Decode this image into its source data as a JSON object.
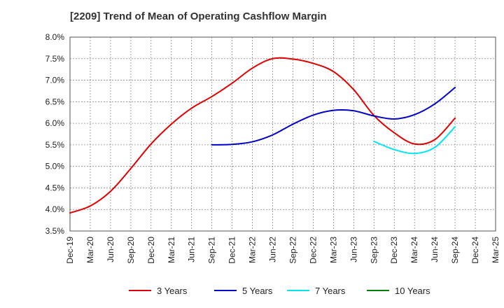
{
  "chart_data": {
    "type": "line",
    "title": "[2209]  Trend of Mean of Operating Cashflow Margin",
    "xlabel": "",
    "ylabel": "",
    "x": [
      "Dec-19",
      "Mar-20",
      "Jun-20",
      "Sep-20",
      "Dec-20",
      "Mar-21",
      "Jun-21",
      "Sep-21",
      "Dec-21",
      "Mar-22",
      "Jun-22",
      "Sep-22",
      "Dec-22",
      "Mar-23",
      "Jun-23",
      "Sep-23",
      "Dec-23",
      "Mar-24",
      "Jun-24",
      "Sep-24",
      "Dec-24",
      "Mar-25"
    ],
    "y_ticks": [
      "3.5%",
      "4.0%",
      "4.5%",
      "5.0%",
      "5.5%",
      "6.0%",
      "6.5%",
      "7.0%",
      "7.5%",
      "8.0%"
    ],
    "ylim": [
      3.5,
      8.0
    ],
    "grid": true,
    "legend_position": "bottom",
    "series": [
      {
        "name": "3 Years",
        "color": "#e00000",
        "values": [
          3.92,
          4.08,
          4.42,
          4.95,
          5.52,
          5.98,
          6.35,
          6.62,
          6.93,
          7.28,
          7.5,
          7.49,
          7.39,
          7.2,
          6.78,
          6.18,
          5.78,
          5.52,
          5.62,
          6.12,
          null,
          null
        ]
      },
      {
        "name": "5 Years",
        "color": "#0000c8",
        "values": [
          null,
          null,
          null,
          null,
          null,
          null,
          null,
          5.5,
          5.51,
          5.57,
          5.73,
          5.98,
          6.19,
          6.3,
          6.29,
          6.17,
          6.1,
          6.2,
          6.45,
          6.83,
          null,
          null
        ]
      },
      {
        "name": "7 Years",
        "color": "#00e5ee",
        "values": [
          null,
          null,
          null,
          null,
          null,
          null,
          null,
          null,
          null,
          null,
          null,
          null,
          null,
          null,
          null,
          5.58,
          5.39,
          5.3,
          5.44,
          5.92,
          null,
          null
        ]
      },
      {
        "name": "10 Years",
        "color": "#008000",
        "values": [
          null,
          null,
          null,
          null,
          null,
          null,
          null,
          null,
          null,
          null,
          null,
          null,
          null,
          null,
          null,
          null,
          null,
          null,
          null,
          null,
          null,
          null
        ]
      }
    ]
  }
}
